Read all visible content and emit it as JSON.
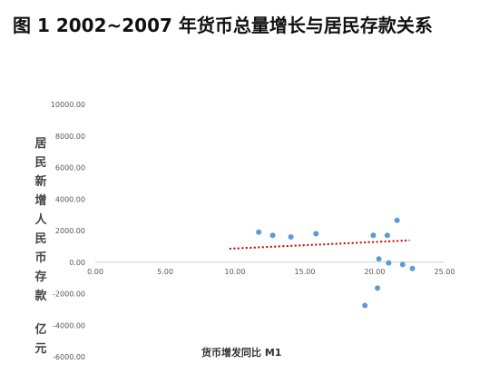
{
  "chart_data": {
    "type": "scatter",
    "title": "图 1 2002~2007 年货币总量增长与居民存款关系",
    "xlabel": "货币增发同比 M1",
    "ylabel": "居民新增人民币存款",
    "ylabel_unit": "亿元",
    "xlim": [
      0,
      25
    ],
    "ylim": [
      -6000,
      10000
    ],
    "x_ticks": [
      "0.00",
      "5.00",
      "10.00",
      "15.00",
      "20.00",
      "25.00"
    ],
    "y_ticks": [
      "10000.00",
      "8000.00",
      "6000.00",
      "4000.00",
      "2000.00",
      "0.00",
      "-2000.00",
      "-4000.00",
      "-6000.00"
    ],
    "grid": false,
    "legend": "none",
    "point_color": "#5b9bd5",
    "trendline_color": "#c00000",
    "x": [
      11.7,
      12.7,
      14.0,
      15.8,
      19.9,
      20.3,
      20.9,
      21.6,
      22.0,
      22.7,
      20.2,
      19.3,
      21.0
    ],
    "y": [
      1900,
      1700,
      1600,
      1800,
      1700,
      200,
      1700,
      2650,
      -150,
      -400,
      -1650,
      -2750,
      -50
    ],
    "trendline": {
      "x": [
        9.6,
        22.5
      ],
      "y": [
        850,
        1380
      ]
    }
  }
}
